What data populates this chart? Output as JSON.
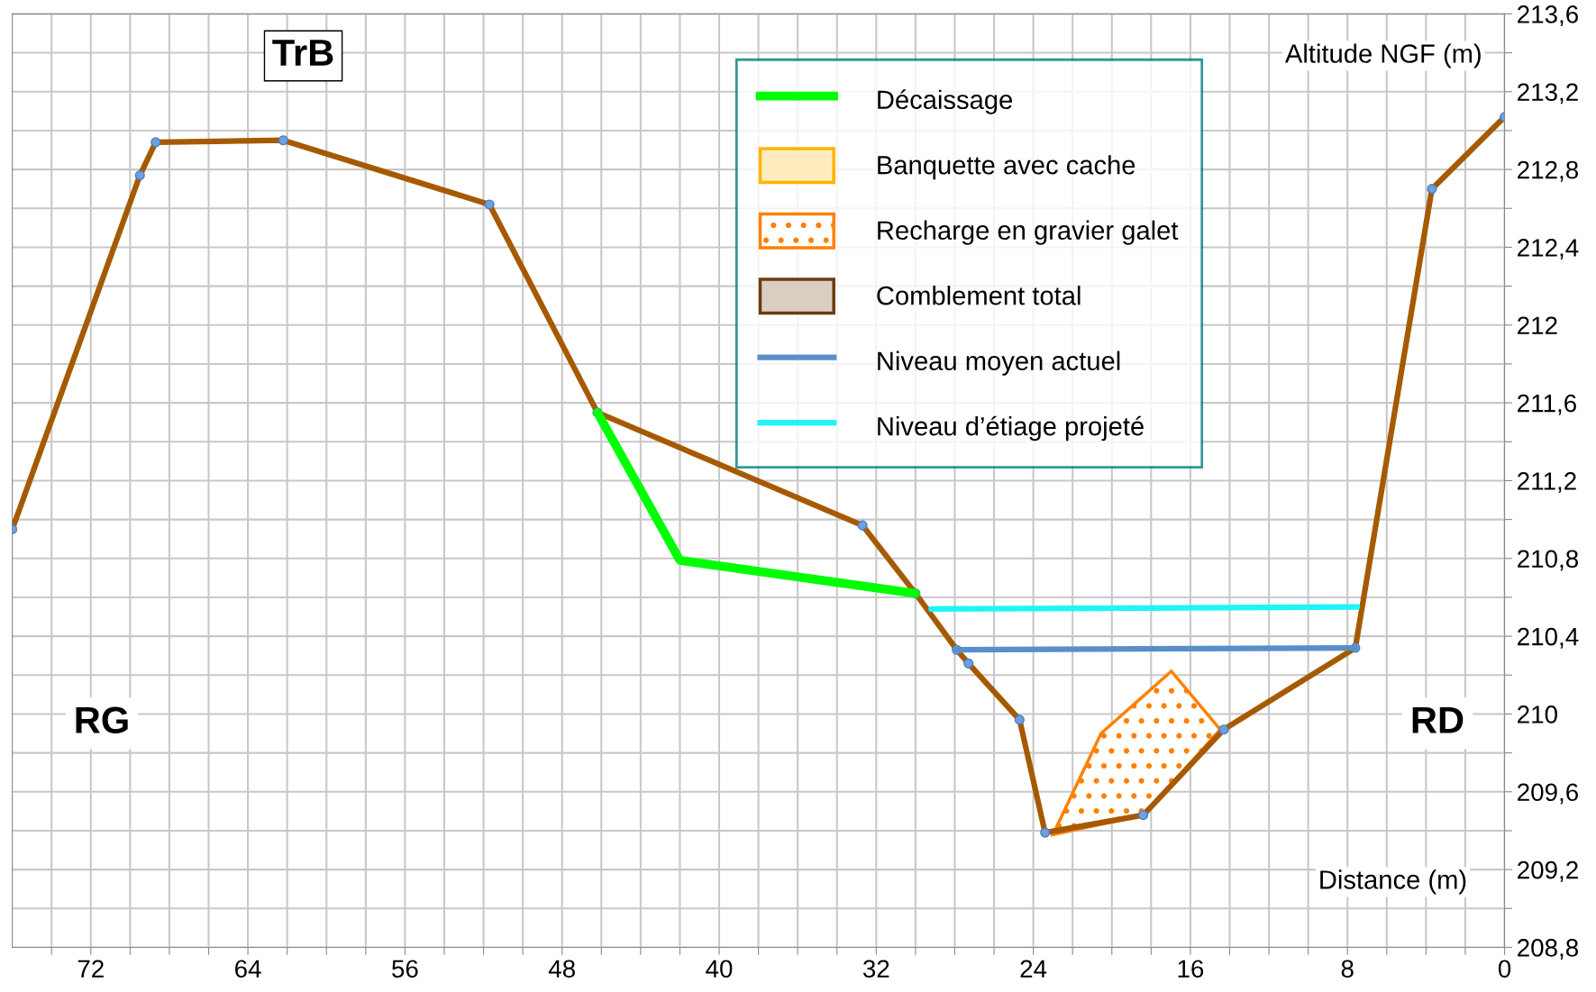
{
  "chart_data": {
    "type": "line",
    "xlabel": "Distance (m)",
    "ylabel": "Altitude NGF (m)",
    "annotations": [
      "TrB",
      "RG",
      "RD"
    ],
    "xlim": [
      76,
      0
    ],
    "ylim": [
      208.8,
      213.6
    ],
    "xticks": [
      0,
      {
        "value": 2,
        "label": null
      },
      {
        "value": 4,
        "label": null
      },
      {
        "value": 6,
        "label": null
      },
      8,
      {
        "value": 10,
        "label": null
      },
      {
        "value": 12,
        "label": null
      },
      {
        "value": 14,
        "label": null
      },
      16,
      {
        "value": 18,
        "label": null
      },
      {
        "value": 20,
        "label": null
      },
      {
        "value": 22,
        "label": null
      },
      24,
      {
        "value": 26,
        "label": null
      },
      {
        "value": 28,
        "label": null
      },
      {
        "value": 30,
        "label": null
      },
      32,
      {
        "value": 34,
        "label": null
      },
      {
        "value": 36,
        "label": null
      },
      {
        "value": 38,
        "label": null
      },
      40,
      {
        "value": 42,
        "label": null
      },
      {
        "value": 44,
        "label": null
      },
      {
        "value": 46,
        "label": null
      },
      48,
      {
        "value": 50,
        "label": null
      },
      {
        "value": 52,
        "label": null
      },
      {
        "value": 54,
        "label": null
      },
      56,
      {
        "value": 58,
        "label": null
      },
      {
        "value": 60,
        "label": null
      },
      {
        "value": 62,
        "label": null
      },
      64,
      {
        "value": 66,
        "label": null
      },
      {
        "value": 68,
        "label": null
      },
      {
        "value": 70,
        "label": null
      },
      72,
      {
        "value": 74,
        "label": null
      }
    ],
    "yticks": [
      {
        "value": 208.8,
        "label": "208,8"
      },
      {
        "value": 209.0,
        "label": null
      },
      {
        "value": 209.2,
        "label": "209,2"
      },
      {
        "value": 209.4,
        "label": null
      },
      {
        "value": 209.6,
        "label": "209,6"
      },
      {
        "value": 209.8,
        "label": null
      },
      210,
      {
        "value": 210.2,
        "label": null
      },
      {
        "value": 210.4,
        "label": "210,4"
      },
      {
        "value": 210.6,
        "label": null
      },
      {
        "value": 210.8,
        "label": "210,8"
      },
      {
        "value": 211.0,
        "label": null
      },
      {
        "value": 211.2,
        "label": "211,2"
      },
      {
        "value": 211.4,
        "label": null
      },
      {
        "value": 211.6,
        "label": "211,6"
      },
      {
        "value": 211.8,
        "label": null
      },
      212,
      {
        "value": 212.2,
        "label": null
      },
      {
        "value": 212.4,
        "label": "212,4"
      },
      {
        "value": 212.6,
        "label": null
      },
      {
        "value": 212.8,
        "label": "212,8"
      },
      {
        "value": 213.0,
        "label": null
      },
      {
        "value": 213.2,
        "label": "213,2"
      },
      {
        "value": 213.4,
        "label": null
      },
      {
        "value": 213.6,
        "label": "213,6"
      }
    ],
    "grid": true,
    "legend": "top right",
    "series": [
      {
        "color": "#a65a00",
        "marker": "circle",
        "x": [
          76,
          69.5,
          68.7,
          62.2,
          51.7,
          46.2,
          32.7,
          30.0,
          27.9,
          27.3,
          24.7,
          23.4,
          18.4,
          14.3,
          7.6,
          3.7,
          0
        ],
        "values": [
          210.95,
          212.77,
          212.94,
          212.95,
          212.62,
          211.55,
          210.97,
          210.62,
          210.33,
          210.26,
          209.97,
          209.39,
          209.48,
          209.92,
          210.34,
          212.7,
          213.07
        ]
      },
      {
        "name": "Décaissage",
        "color": "#00ff00",
        "x": [
          46.2,
          42.0,
          30.0
        ],
        "values": [
          211.55,
          210.79,
          210.62
        ]
      },
      {
        "type": "area",
        "name": "Banquette avec cache",
        "color": "#ffb300"
      },
      {
        "type": "area",
        "name": "Recharge en gravier galet",
        "color": "#ff8000",
        "x": [
          23.0,
          20.55,
          16.97,
          14.48,
          18.37
        ],
        "values": [
          209.38,
          209.9,
          210.22,
          209.92,
          209.48
        ]
      },
      {
        "type": "area",
        "name": "Comblement total",
        "color": "#6b3a0c"
      },
      {
        "name": "Niveau moyen actuel",
        "color": "#5b8ec8",
        "x": [
          27.9,
          7.6
        ],
        "values": [
          210.33,
          210.34
        ]
      },
      {
        "name": "Niveau d’étiage projeté",
        "color": "#1ef5f5",
        "x": [
          29.2,
          7.5
        ],
        "values": [
          210.54,
          210.55
        ]
      }
    ]
  }
}
